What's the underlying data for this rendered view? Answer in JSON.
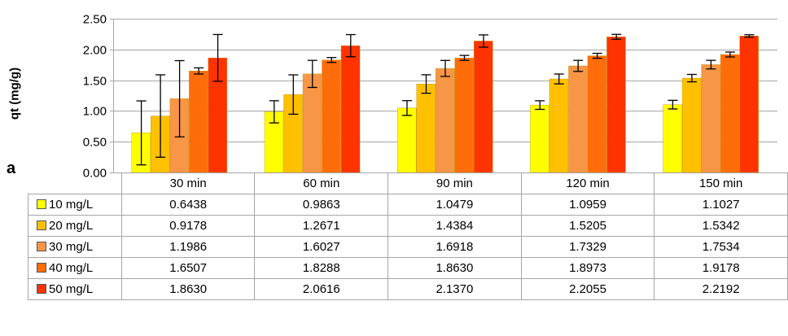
{
  "chart_data": {
    "type": "bar",
    "ylabel": "qt (mg/g)",
    "xlabel": "",
    "panel_label": "a",
    "ylim": [
      0,
      2.5
    ],
    "yticks": [
      "0.00",
      "0.50",
      "1.00",
      "1.50",
      "2.00",
      "2.50"
    ],
    "grid": true,
    "legend": "data-table",
    "categories": [
      "30 min",
      "60 min",
      "90 min",
      "120 min",
      "150 min"
    ],
    "series": [
      {
        "name": "10 mg/L",
        "color": "#ffff00",
        "values": [
          0.6438,
          0.9863,
          1.0479,
          1.0959,
          1.1027
        ],
        "values_text": [
          "0.6438",
          "0.9863",
          "1.0479",
          "1.0959",
          "1.1027"
        ],
        "errors": [
          0.52,
          0.18,
          0.12,
          0.07,
          0.07
        ]
      },
      {
        "name": "20 mg/L",
        "color": "#ffc000",
        "values": [
          0.9178,
          1.2671,
          1.4384,
          1.5205,
          1.5342
        ],
        "values_text": [
          "0.9178",
          "1.2671",
          "1.4384",
          "1.5205",
          "1.5342"
        ],
        "errors": [
          0.67,
          0.32,
          0.15,
          0.08,
          0.06
        ]
      },
      {
        "name": "30 mg/L",
        "color": "#f79646",
        "values": [
          1.1986,
          1.6027,
          1.6918,
          1.7329,
          1.7534
        ],
        "values_text": [
          "1.1986",
          "1.6027",
          "1.6918",
          "1.7329",
          "1.7534"
        ],
        "errors": [
          0.62,
          0.22,
          0.13,
          0.09,
          0.07
        ]
      },
      {
        "name": "40 mg/L",
        "color": "#ff6d0a",
        "values": [
          1.6507,
          1.8288,
          1.863,
          1.8973,
          1.9178
        ],
        "values_text": [
          "1.6507",
          "1.8288",
          "1.8630",
          "1.8973",
          "1.9178"
        ],
        "errors": [
          0.05,
          0.04,
          0.04,
          0.04,
          0.04
        ]
      },
      {
        "name": "50 mg/L",
        "color": "#ff3300",
        "values": [
          1.863,
          2.0616,
          2.137,
          2.2055,
          2.2192
        ],
        "values_text": [
          "1.8630",
          "2.0616",
          "2.1370",
          "2.2055",
          "2.2192"
        ],
        "errors": [
          0.38,
          0.18,
          0.1,
          0.04,
          0.02
        ]
      }
    ]
  }
}
